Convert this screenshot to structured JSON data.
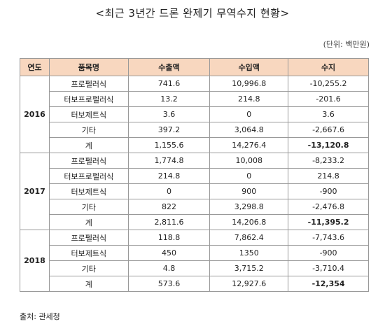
{
  "title": "<최근 3년간 드론 완제기 무역수지 현황>",
  "unit": "(단위: 백만원)",
  "table": {
    "header": [
      "연도",
      "품목명",
      "수출액",
      "수입액",
      "수지"
    ],
    "groups": [
      {
        "year": "2016",
        "rows": [
          [
            "프로펠러식",
            "741.6",
            "10,996.8",
            "-10,255.2"
          ],
          [
            "터보프로펠러식",
            "13.2",
            "214.8",
            "-201.6"
          ],
          [
            "터보제트식",
            "3.6",
            "0",
            "3.6"
          ],
          [
            "기타",
            "397.2",
            "3,064.8",
            "-2,667.6"
          ],
          [
            "계",
            "1,155.6",
            "14,276.4",
            "-13,120.8"
          ]
        ]
      },
      {
        "year": "2017",
        "rows": [
          [
            "프로펠러식",
            "1,774.8",
            "10,008",
            "-8,233.2"
          ],
          [
            "터보프로펠러식",
            "214.8",
            "0",
            "214.8"
          ],
          [
            "터보제트식",
            "0",
            "900",
            "-900"
          ],
          [
            "기타",
            "822",
            "3,298.8",
            "-2,476.8"
          ],
          [
            "계",
            "2,811.6",
            "14,206.8",
            "-11,395.2"
          ]
        ]
      },
      {
        "year": "2018",
        "rows": [
          [
            "프로펠러식",
            "118.8",
            "7,862.4",
            "-7,743.6"
          ],
          [
            "터보제트식",
            "450",
            "1350",
            "-900"
          ],
          [
            "기타",
            "4.8",
            "3,715.2",
            "-3,710.4"
          ],
          [
            "계",
            "573.6",
            "12,927.6",
            "-12,354"
          ]
        ]
      }
    ]
  },
  "source": "출처: 관세청"
}
